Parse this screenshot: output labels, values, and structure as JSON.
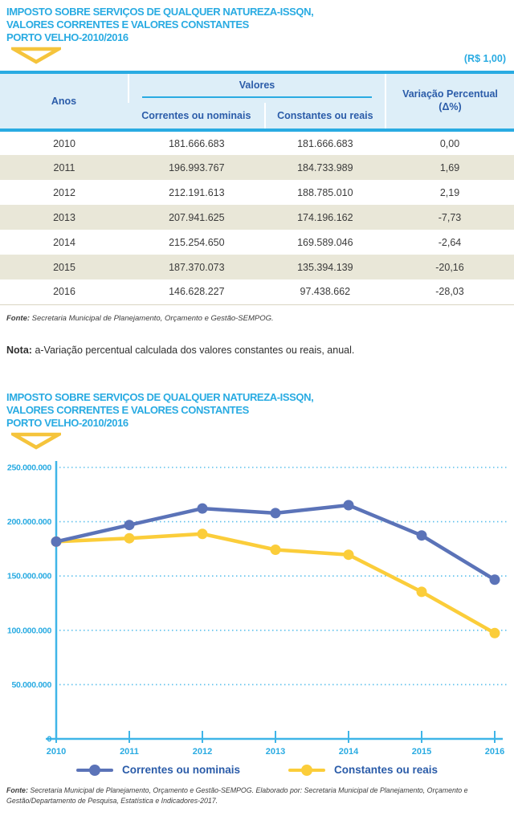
{
  "colors": {
    "title_blue": "#29abe2",
    "dark_blue": "#2b5ca9",
    "axis_blue": "#3fb5e8",
    "gridline_blue": "#5cc0ec",
    "series_blue": "#5b73b8",
    "series_yellow": "#fbcd3a",
    "chevron_yellow": "#f5c43c",
    "row_alt_beige": "#e9e7d8",
    "header_bg": "#ddeef8"
  },
  "table_section": {
    "title_lines": [
      "IMPOSTO SOBRE SERVIÇOS DE QUALQUER NATUREZA-ISSQN,",
      "VALORES CORRENTES E VALORES CONSTANTES",
      "PORTO VELHO-2010/2016"
    ],
    "unit_label": "(R$ 1,00)",
    "table": {
      "col_anos": "Anos",
      "col_valores": "Valores",
      "col_correntes": "Correntes ou nominais",
      "col_constantes": "Constantes ou reais",
      "col_variacao": "Variação Percentual (Δ%)",
      "rows": [
        [
          "2010",
          "181.666.683",
          "181.666.683",
          "0,00"
        ],
        [
          "2011",
          "196.993.767",
          "184.733.989",
          "1,69"
        ],
        [
          "2012",
          "212.191.613",
          "188.785.010",
          "2,19"
        ],
        [
          "2013",
          "207.941.625",
          "174.196.162",
          "-7,73"
        ],
        [
          "2014",
          "215.254.650",
          "169.589.046",
          "-2,64"
        ],
        [
          "2015",
          "187.370.073",
          "135.394.139",
          "-20,16"
        ],
        [
          "2016",
          "146.628.227",
          "97.438.662",
          "-28,03"
        ]
      ]
    },
    "fonte_label": "Fonte:",
    "fonte_text": "Secretaria Municipal de Planejamento, Orçamento e Gestão-SEMPOG.",
    "nota_label": "Nota:",
    "nota_text": "a-Variação percentual calculada dos valores constantes ou reais, anual."
  },
  "chart_section": {
    "title_lines": [
      "IMPOSTO SOBRE SERVIÇOS DE QUALQUER NATUREZA-ISSQN,",
      "VALORES CORRENTES E VALORES CONSTANTES",
      "PORTO VELHO-2010/2016"
    ],
    "fonte_label": "Fonte:",
    "fonte_text": "Secretaria Municipal de Planejamento, Orçamento e Gestão-SEMPOG. Elaborado por: Secretaria Municipal de Planejamento, Orçamento e Gestão/Departamento de Pesquisa, Estatística e Indicadores-2017."
  },
  "chart_data": {
    "type": "line",
    "x": [
      "2010",
      "2011",
      "2012",
      "2013",
      "2014",
      "2015",
      "2016"
    ],
    "series": [
      {
        "name": "Correntes ou nominais",
        "color": "#5b73b8",
        "values": [
          181666683,
          196993767,
          212191613,
          207941625,
          215254650,
          187370073,
          146628227
        ]
      },
      {
        "name": "Constantes ou reais",
        "color": "#fbcd3a",
        "values": [
          181666683,
          184733989,
          188785010,
          174196162,
          169589046,
          135394139,
          97438662
        ]
      }
    ],
    "ylim": [
      0,
      250000000
    ],
    "ytick_step": 50000000,
    "ytick_labels": [
      "0",
      "50.000.000",
      "100.000.000",
      "150.000.000",
      "200.000.000",
      "250.000.000"
    ],
    "grid": "dotted-horizontal",
    "legend_position": "bottom"
  }
}
